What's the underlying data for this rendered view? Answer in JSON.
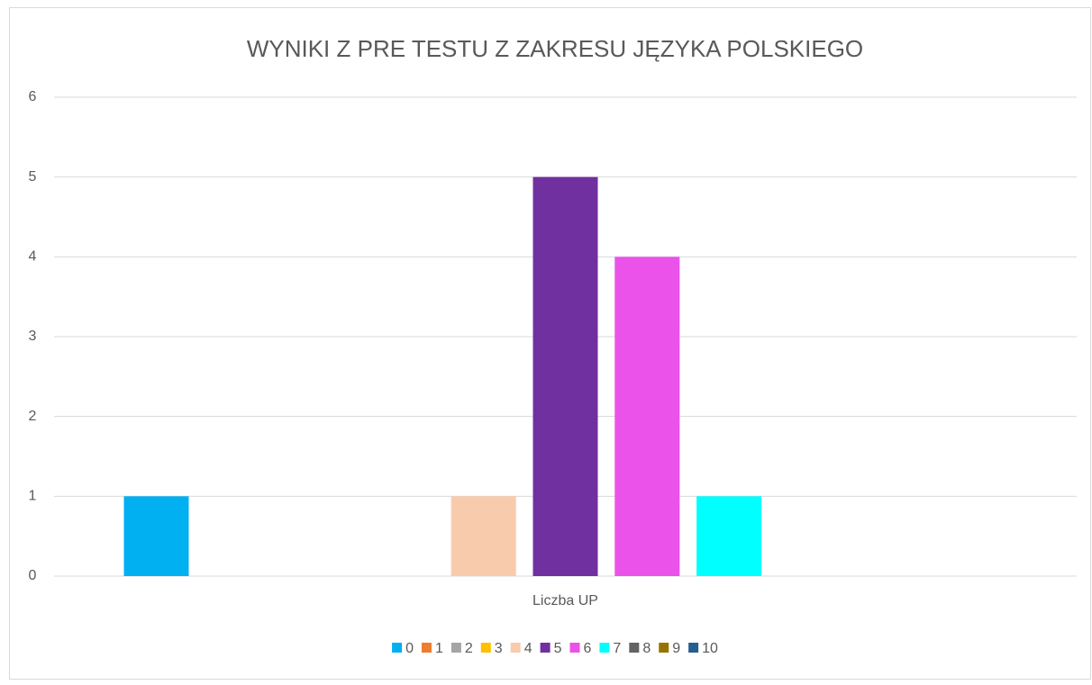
{
  "chart_data": {
    "type": "bar",
    "title": "WYNIKI Z PRE TESTU Z ZAKRESU JĘZYKA POLSKIEGO",
    "categories": [
      "Liczba UP"
    ],
    "series": [
      {
        "name": "0",
        "color": "#00b0f0",
        "values": [
          1
        ]
      },
      {
        "name": "1",
        "color": "#ed7d31",
        "values": [
          0
        ]
      },
      {
        "name": "2",
        "color": "#a5a5a5",
        "values": [
          0
        ]
      },
      {
        "name": "3",
        "color": "#ffc000",
        "values": [
          0
        ]
      },
      {
        "name": "4",
        "color": "#f8cbad",
        "values": [
          1
        ]
      },
      {
        "name": "5",
        "color": "#7030a0",
        "values": [
          5
        ]
      },
      {
        "name": "6",
        "color": "#ea52ea",
        "values": [
          4
        ]
      },
      {
        "name": "7",
        "color": "#00ffff",
        "values": [
          1
        ]
      },
      {
        "name": "8",
        "color": "#636363",
        "values": [
          0
        ]
      },
      {
        "name": "9",
        "color": "#997300",
        "values": [
          0
        ]
      },
      {
        "name": "10",
        "color": "#255e91",
        "values": [
          0
        ]
      }
    ],
    "ylim": [
      0,
      6
    ],
    "yticks": [
      0,
      1,
      2,
      3,
      4,
      5,
      6
    ],
    "grid": true,
    "legend": "bottom"
  }
}
